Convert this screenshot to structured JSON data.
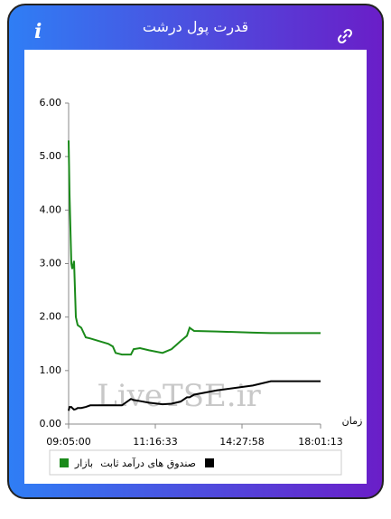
{
  "header": {
    "title": "قدرت پول درشت",
    "info_icon": "i"
  },
  "chart_data": {
    "type": "line",
    "watermark": "LiveTSE.ir",
    "x_label": "زمان",
    "x": [
      0,
      1,
      3,
      4,
      6,
      8,
      10,
      14,
      19,
      24,
      34,
      44,
      49,
      52,
      59,
      69,
      72,
      79,
      89,
      104,
      114,
      124,
      131,
      134,
      139,
      164,
      204,
      224,
      279
    ],
    "xlim": [
      0,
      279
    ],
    "xticks": [
      {
        "value": 0,
        "label": "09:05:00"
      },
      {
        "value": 96,
        "label": "11:16:33"
      },
      {
        "value": 192,
        "label": "14:27:58"
      },
      {
        "value": 279,
        "label": "18:01:13"
      }
    ],
    "ylim": [
      0,
      6
    ],
    "yticks": [
      {
        "value": 0,
        "label": "0.00"
      },
      {
        "value": 1,
        "label": "1.00"
      },
      {
        "value": 2,
        "label": "2.00"
      },
      {
        "value": 3,
        "label": "3.00"
      },
      {
        "value": 4,
        "label": "4.00"
      },
      {
        "value": 5,
        "label": "5.00"
      },
      {
        "value": 6,
        "label": "6.00"
      }
    ],
    "series": [
      {
        "name": "بازار",
        "color": "#1a8a1a",
        "values": [
          5.3,
          4.3,
          3.0,
          2.9,
          3.05,
          2.0,
          1.85,
          1.8,
          1.62,
          1.6,
          1.55,
          1.5,
          1.45,
          1.33,
          1.3,
          1.3,
          1.4,
          1.42,
          1.38,
          1.33,
          1.4,
          1.55,
          1.65,
          1.8,
          1.74,
          1.73,
          1.71,
          1.7,
          1.7
        ]
      },
      {
        "name": "صندوق های درآمد ثابت",
        "color": "#000000",
        "values": [
          0.25,
          0.32,
          0.32,
          0.3,
          0.27,
          0.28,
          0.3,
          0.3,
          0.32,
          0.35,
          0.35,
          0.35,
          0.35,
          0.35,
          0.35,
          0.47,
          0.45,
          0.43,
          0.4,
          0.37,
          0.38,
          0.42,
          0.5,
          0.5,
          0.55,
          0.63,
          0.72,
          0.8,
          0.8
        ]
      }
    ]
  }
}
